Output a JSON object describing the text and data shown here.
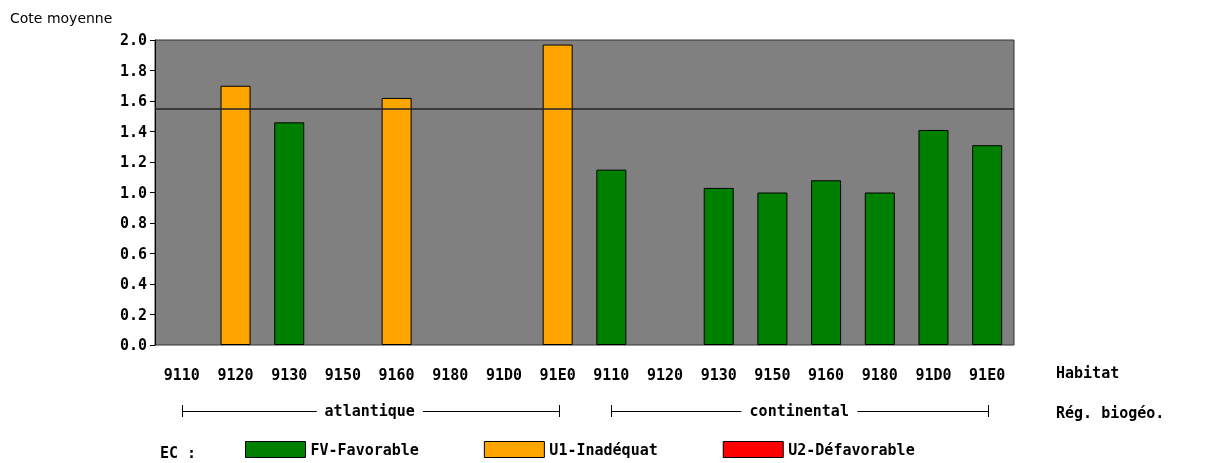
{
  "chart_data": {
    "type": "bar",
    "ylabel": "Cote moyenne",
    "xlabel": "Habitat",
    "legend_title": "EC :",
    "categories": [
      "9110",
      "9120",
      "9130",
      "9150",
      "9160",
      "9180",
      "91D0",
      "91E0",
      "9110",
      "9120",
      "9130",
      "9150",
      "9160",
      "9180",
      "91D0",
      "91E0"
    ],
    "series": [
      {
        "name": "FV-Favorable",
        "color": "#008000",
        "values": [
          null,
          null,
          1.46,
          null,
          null,
          null,
          null,
          null,
          1.15,
          null,
          1.03,
          1.0,
          1.08,
          1.0,
          1.41,
          1.31
        ]
      },
      {
        "name": "U1-Inadéquat",
        "color": "#ffa500",
        "values": [
          null,
          1.7,
          null,
          null,
          1.62,
          null,
          null,
          1.97,
          null,
          null,
          null,
          null,
          null,
          null,
          null,
          null
        ]
      },
      {
        "name": "U2-Défavorable",
        "color": "#ff0000",
        "values": [
          null,
          null,
          null,
          null,
          null,
          null,
          null,
          null,
          null,
          null,
          null,
          null,
          null,
          null,
          null,
          null
        ]
      }
    ],
    "stacked": true,
    "ylim": [
      0,
      2.0
    ],
    "yticks": [
      {
        "value": 0,
        "label": "0.0"
      },
      0.2,
      0.4,
      0.6,
      0.8,
      {
        "value": 1,
        "label": "1.0"
      },
      1.2,
      1.4,
      1.6,
      1.8,
      {
        "value": 2,
        "label": "2.0"
      }
    ],
    "ref_lines": [
      {
        "axis": "y",
        "value": 1.55,
        "color": "#222222"
      }
    ],
    "legend": "bottom",
    "grid": false,
    "annotations": [
      "atlantique",
      "continental",
      "Rég. biogéo."
    ]
  }
}
